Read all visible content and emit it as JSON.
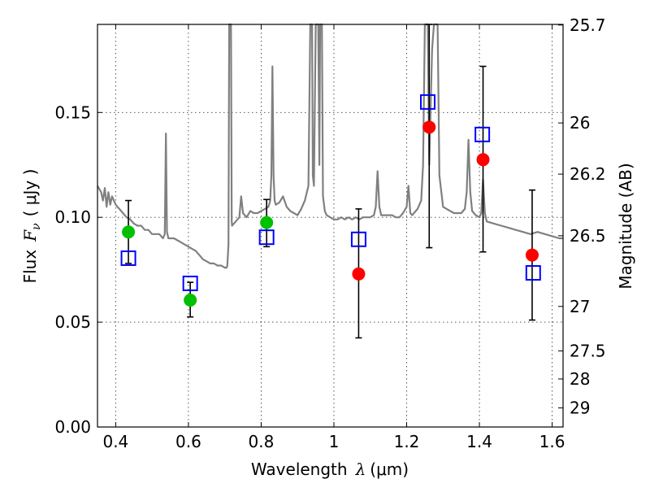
{
  "chart_data": {
    "type": "scatter",
    "xlabel_main": "Wavelength",
    "xlabel_symbol": "λ",
    "xlabel_unit": "(μm)",
    "ylabel_main": "Flux",
    "ylabel_symbol": "F",
    "ylabel_subscript": "ν",
    "ylabel_unit": "( μJy )",
    "y2label": "Magnitude (AB)",
    "xlim": [
      0.35,
      1.63
    ],
    "ylim": [
      0.0,
      0.192
    ],
    "grid": true,
    "x_ticks": [
      {
        "value": 0.4,
        "label": "0.4"
      },
      {
        "value": 0.6,
        "label": "0.6"
      },
      {
        "value": 0.8,
        "label": "0.8"
      },
      {
        "value": 1.0,
        "label": "1"
      },
      {
        "value": 1.2,
        "label": "1.2"
      },
      {
        "value": 1.4,
        "label": "1.4"
      },
      {
        "value": 1.6,
        "label": "1.6"
      }
    ],
    "y_ticks": [
      {
        "value": 0.0,
        "label": "0.00"
      },
      {
        "value": 0.05,
        "label": "0.05"
      },
      {
        "value": 0.1,
        "label": "0.10"
      },
      {
        "value": 0.15,
        "label": "0.15"
      }
    ],
    "y2_ticks": [
      {
        "flux": 0.1917,
        "label": "25.7"
      },
      {
        "flux": 0.145,
        "label": "26"
      },
      {
        "flux": 0.1206,
        "label": "26.2"
      },
      {
        "flux": 0.0912,
        "label": "26.5"
      },
      {
        "flux": 0.0575,
        "label": "27"
      },
      {
        "flux": 0.0363,
        "label": "27.5"
      },
      {
        "flux": 0.0229,
        "label": "28"
      },
      {
        "flux": 0.0091,
        "label": "29"
      }
    ],
    "colors": {
      "spectrum": "#808080",
      "observed_green": "#00c000",
      "observed_red": "#ff0000",
      "model_square": "#0000ff",
      "error_bar": "#000000"
    },
    "spectrum": [
      [
        0.35,
        0.115
      ],
      [
        0.36,
        0.112
      ],
      [
        0.365,
        0.108
      ],
      [
        0.37,
        0.114
      ],
      [
        0.375,
        0.105
      ],
      [
        0.38,
        0.112
      ],
      [
        0.385,
        0.106
      ],
      [
        0.39,
        0.11
      ],
      [
        0.4,
        0.106
      ],
      [
        0.41,
        0.104
      ],
      [
        0.42,
        0.102
      ],
      [
        0.43,
        0.1
      ],
      [
        0.44,
        0.099
      ],
      [
        0.45,
        0.097
      ],
      [
        0.46,
        0.096
      ],
      [
        0.47,
        0.096
      ],
      [
        0.48,
        0.094
      ],
      [
        0.49,
        0.094
      ],
      [
        0.5,
        0.092
      ],
      [
        0.52,
        0.092
      ],
      [
        0.53,
        0.09
      ],
      [
        0.535,
        0.092
      ],
      [
        0.538,
        0.14
      ],
      [
        0.541,
        0.093
      ],
      [
        0.545,
        0.09
      ],
      [
        0.55,
        0.09
      ],
      [
        0.56,
        0.09
      ],
      [
        0.57,
        0.089
      ],
      [
        0.58,
        0.088
      ],
      [
        0.59,
        0.087
      ],
      [
        0.6,
        0.086
      ],
      [
        0.61,
        0.085
      ],
      [
        0.62,
        0.084
      ],
      [
        0.63,
        0.082
      ],
      [
        0.64,
        0.08
      ],
      [
        0.65,
        0.079
      ],
      [
        0.66,
        0.078
      ],
      [
        0.67,
        0.078
      ],
      [
        0.68,
        0.077
      ],
      [
        0.69,
        0.077
      ],
      [
        0.7,
        0.076
      ],
      [
        0.705,
        0.076
      ],
      [
        0.707,
        0.077
      ],
      [
        0.71,
        0.087
      ],
      [
        0.712,
        0.192
      ],
      [
        0.717,
        0.192
      ],
      [
        0.719,
        0.098
      ],
      [
        0.72,
        0.096
      ],
      [
        0.73,
        0.098
      ],
      [
        0.74,
        0.1
      ],
      [
        0.745,
        0.11
      ],
      [
        0.75,
        0.102
      ],
      [
        0.76,
        0.1
      ],
      [
        0.77,
        0.103
      ],
      [
        0.78,
        0.102
      ],
      [
        0.79,
        0.102
      ],
      [
        0.8,
        0.103
      ],
      [
        0.81,
        0.104
      ],
      [
        0.82,
        0.105
      ],
      [
        0.825,
        0.108
      ],
      [
        0.828,
        0.12
      ],
      [
        0.831,
        0.172
      ],
      [
        0.834,
        0.12
      ],
      [
        0.837,
        0.108
      ],
      [
        0.84,
        0.106
      ],
      [
        0.85,
        0.107
      ],
      [
        0.86,
        0.11
      ],
      [
        0.87,
        0.105
      ],
      [
        0.88,
        0.103
      ],
      [
        0.89,
        0.102
      ],
      [
        0.9,
        0.101
      ],
      [
        0.91,
        0.104
      ],
      [
        0.92,
        0.108
      ],
      [
        0.93,
        0.115
      ],
      [
        0.935,
        0.192
      ],
      [
        0.94,
        0.192
      ],
      [
        0.942,
        0.12
      ],
      [
        0.945,
        0.115
      ],
      [
        0.95,
        0.192
      ],
      [
        0.957,
        0.192
      ],
      [
        0.96,
        0.125
      ],
      [
        0.962,
        0.192
      ],
      [
        0.967,
        0.192
      ],
      [
        0.97,
        0.11
      ],
      [
        0.975,
        0.103
      ],
      [
        0.98,
        0.101
      ],
      [
        0.99,
        0.1
      ],
      [
        1.0,
        0.099
      ],
      [
        1.01,
        0.099
      ],
      [
        1.02,
        0.1
      ],
      [
        1.03,
        0.099
      ],
      [
        1.04,
        0.1
      ],
      [
        1.05,
        0.099
      ],
      [
        1.06,
        0.1
      ],
      [
        1.07,
        0.099
      ],
      [
        1.08,
        0.1
      ],
      [
        1.09,
        0.1
      ],
      [
        1.1,
        0.1
      ],
      [
        1.11,
        0.101
      ],
      [
        1.115,
        0.105
      ],
      [
        1.12,
        0.122
      ],
      [
        1.125,
        0.105
      ],
      [
        1.13,
        0.101
      ],
      [
        1.14,
        0.101
      ],
      [
        1.15,
        0.101
      ],
      [
        1.16,
        0.101
      ],
      [
        1.17,
        0.1
      ],
      [
        1.18,
        0.1
      ],
      [
        1.19,
        0.102
      ],
      [
        1.2,
        0.105
      ],
      [
        1.205,
        0.115
      ],
      [
        1.21,
        0.102
      ],
      [
        1.215,
        0.101
      ],
      [
        1.22,
        0.102
      ],
      [
        1.23,
        0.104
      ],
      [
        1.24,
        0.108
      ],
      [
        1.245,
        0.125
      ],
      [
        1.25,
        0.192
      ],
      [
        1.258,
        0.192
      ],
      [
        1.262,
        0.125
      ],
      [
        1.27,
        0.18
      ],
      [
        1.275,
        0.192
      ],
      [
        1.285,
        0.192
      ],
      [
        1.29,
        0.12
      ],
      [
        1.3,
        0.105
      ],
      [
        1.31,
        0.104
      ],
      [
        1.32,
        0.103
      ],
      [
        1.33,
        0.102
      ],
      [
        1.34,
        0.102
      ],
      [
        1.35,
        0.102
      ],
      [
        1.36,
        0.104
      ],
      [
        1.365,
        0.112
      ],
      [
        1.37,
        0.137
      ],
      [
        1.375,
        0.112
      ],
      [
        1.38,
        0.103
      ],
      [
        1.39,
        0.101
      ],
      [
        1.4,
        0.1
      ],
      [
        1.405,
        0.102
      ],
      [
        1.41,
        0.118
      ],
      [
        1.415,
        0.102
      ],
      [
        1.42,
        0.098
      ],
      [
        1.44,
        0.097
      ],
      [
        1.46,
        0.096
      ],
      [
        1.48,
        0.095
      ],
      [
        1.5,
        0.094
      ],
      [
        1.52,
        0.093
      ],
      [
        1.54,
        0.092
      ],
      [
        1.56,
        0.093
      ],
      [
        1.58,
        0.092
      ],
      [
        1.6,
        0.091
      ],
      [
        1.62,
        0.09
      ],
      [
        1.63,
        0.09
      ]
    ],
    "observed": [
      {
        "x": 0.435,
        "y": 0.093,
        "yerr_low": null,
        "yerr_high": null,
        "color": "green"
      },
      {
        "x": 0.605,
        "y": 0.0605,
        "yerr_low": null,
        "yerr_high": null,
        "color": "green"
      },
      {
        "x": 0.815,
        "y": 0.0975,
        "yerr_low": null,
        "yerr_high": null,
        "color": "green"
      },
      {
        "x": 1.068,
        "y": 0.073,
        "yerr_low": null,
        "yerr_high": null,
        "color": "red"
      },
      {
        "x": 1.262,
        "y": 0.143,
        "yerr_low": null,
        "yerr_high": null,
        "color": "red"
      },
      {
        "x": 1.41,
        "y": 0.1275,
        "yerr_low": null,
        "yerr_high": null,
        "color": "red"
      },
      {
        "x": 1.545,
        "y": 0.082,
        "yerr_low": null,
        "yerr_high": null,
        "color": "red"
      }
    ],
    "error_bars": [
      {
        "x": 0.435,
        "low": 0.078,
        "high": 0.108
      },
      {
        "x": 0.605,
        "low": 0.0525,
        "high": 0.069
      },
      {
        "x": 0.815,
        "low": 0.086,
        "high": 0.1085
      },
      {
        "x": 1.068,
        "low": 0.0425,
        "high": 0.104
      },
      {
        "x": 1.262,
        "low": 0.0855,
        "high": 0.192
      },
      {
        "x": 1.41,
        "low": 0.0835,
        "high": 0.172
      },
      {
        "x": 1.545,
        "low": 0.051,
        "high": 0.113
      }
    ],
    "model_photometry": [
      {
        "x": 0.435,
        "y": 0.0805
      },
      {
        "x": 0.605,
        "y": 0.0685
      },
      {
        "x": 0.815,
        "y": 0.0905
      },
      {
        "x": 1.068,
        "y": 0.0895
      },
      {
        "x": 1.258,
        "y": 0.155
      },
      {
        "x": 1.408,
        "y": 0.1395
      },
      {
        "x": 1.548,
        "y": 0.0735
      }
    ]
  }
}
